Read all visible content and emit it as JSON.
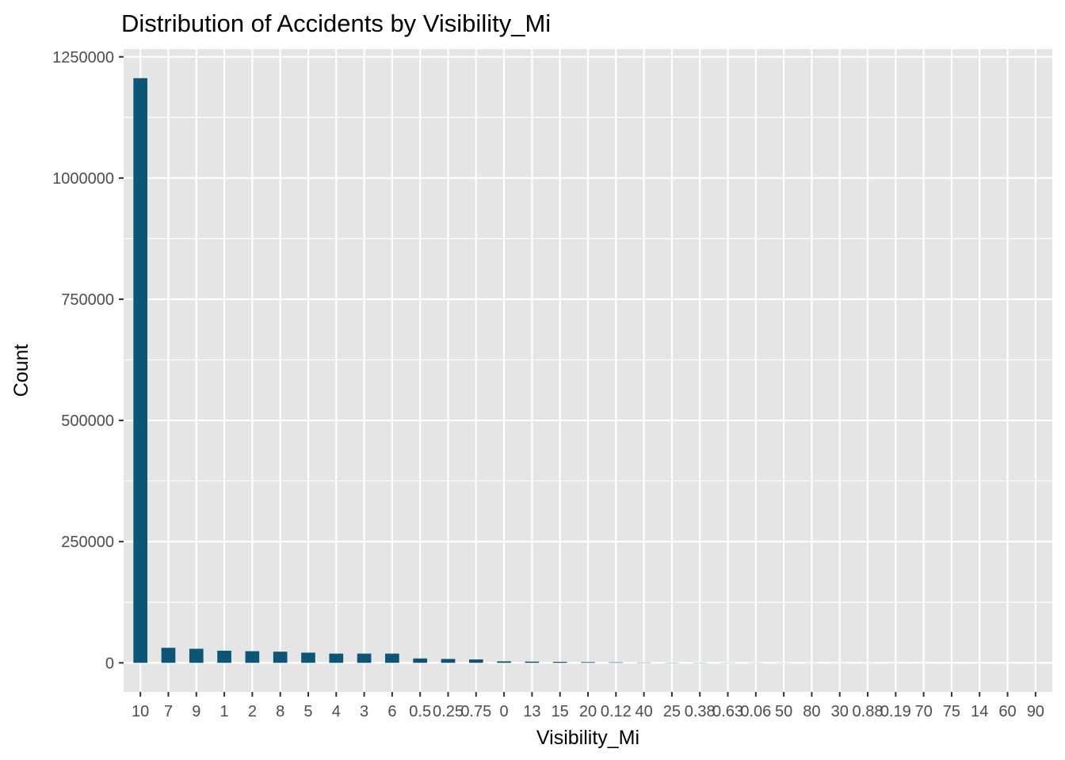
{
  "chart_data": {
    "type": "bar",
    "title": "Distribution of Accidents by Visibility_Mi",
    "xlabel": "Visibility_Mi",
    "ylabel": "Count",
    "categories": [
      "10",
      "7",
      "9",
      "1",
      "2",
      "8",
      "5",
      "4",
      "3",
      "6",
      "0.5",
      "0.25",
      "0.75",
      "0",
      "13",
      "15",
      "20",
      "0.12",
      "40",
      "25",
      "0.38",
      "0.63",
      "0.06",
      "50",
      "80",
      "30",
      "0.88",
      "0.19",
      "70",
      "75",
      "14",
      "60",
      "90"
    ],
    "values": [
      1206000,
      31000,
      29000,
      25000,
      24000,
      23000,
      21000,
      19000,
      19000,
      19000,
      9000,
      8000,
      7000,
      3000,
      2500,
      2000,
      1500,
      1000,
      600,
      500,
      400,
      300,
      250,
      200,
      150,
      120,
      100,
      80,
      60,
      50,
      40,
      30,
      20
    ],
    "yticks": [
      0,
      250000,
      500000,
      750000,
      1000000,
      1250000
    ],
    "ylim": [
      -60000,
      1266000
    ],
    "bar_color": "#0b5577",
    "panel_color": "#e5e5e5",
    "grid_color": "#ffffff",
    "grid": true,
    "legend": "none"
  }
}
